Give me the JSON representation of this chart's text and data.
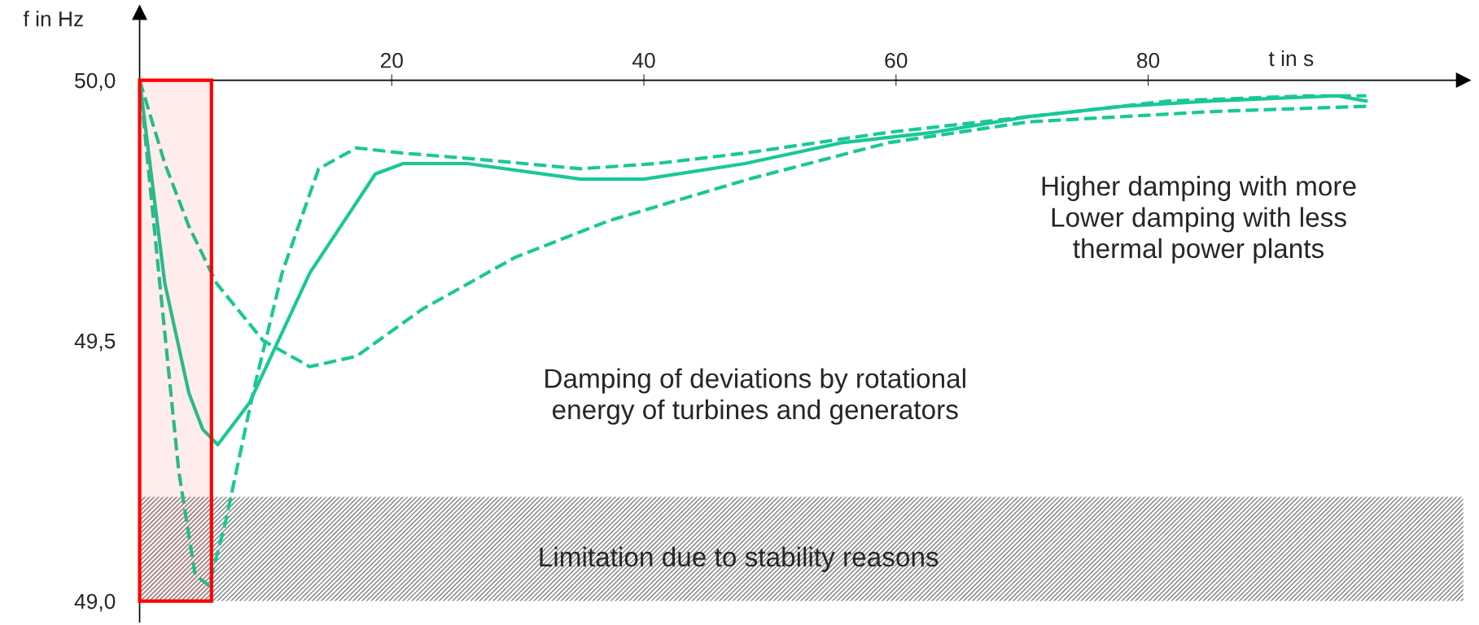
{
  "chart_data": {
    "type": "line",
    "xlabel": "t in s",
    "ylabel": "f in Hz",
    "xlim": [
      0,
      105
    ],
    "ylim": [
      48.96,
      50.13
    ],
    "xticks": [
      20,
      40,
      60,
      80
    ],
    "yticks": [
      {
        "value": 49.0,
        "label": "49,0"
      },
      {
        "value": 49.5,
        "label": "49,5"
      },
      {
        "value": 50.0,
        "label": "50,0"
      }
    ],
    "grid": false,
    "series": [
      {
        "color": "#19c896",
        "line_style": "solid",
        "x": [
          0,
          2,
          3.9,
          5,
          6.2,
          8.7,
          13.5,
          18.7,
          20.9,
          26,
          35,
          40,
          48,
          55.7,
          63,
          70.5,
          78,
          85,
          95,
          97.3
        ],
        "values": [
          50.0,
          49.61,
          49.4,
          49.33,
          49.3,
          49.38,
          49.63,
          49.82,
          49.84,
          49.84,
          49.81,
          49.81,
          49.84,
          49.88,
          49.9,
          49.93,
          49.95,
          49.96,
          49.97,
          49.96
        ]
      },
      {
        "color": "#19c896",
        "line_style": "dashed",
        "x": [
          0,
          1.6,
          3.1,
          4.4,
          5.5,
          6.8,
          9,
          11.3,
          14.2,
          17.2,
          20.9,
          26,
          35,
          41,
          48,
          59.4,
          70.5,
          81.6,
          92.7,
          97.3
        ],
        "values": [
          50.0,
          49.61,
          49.25,
          49.05,
          49.03,
          49.15,
          49.4,
          49.63,
          49.83,
          49.87,
          49.86,
          49.85,
          49.83,
          49.84,
          49.86,
          49.9,
          49.93,
          49.96,
          49.97,
          49.97
        ]
      },
      {
        "color": "#19c896",
        "line_style": "dashed",
        "x": [
          0,
          2,
          3.9,
          6.1,
          9.8,
          13.5,
          17.2,
          22.4,
          29.8,
          37.2,
          48.3,
          59.4,
          70.5,
          85.3,
          97.3
        ],
        "values": [
          50.0,
          49.84,
          49.72,
          49.61,
          49.5,
          49.45,
          49.47,
          49.56,
          49.66,
          49.73,
          49.81,
          49.88,
          49.92,
          49.94,
          49.95
        ]
      }
    ],
    "bands": [
      {
        "axis": "y",
        "from": 49.0,
        "to": 49.2,
        "label": "Limitation due to stability reasons",
        "color": "#808080"
      },
      {
        "axis": "x",
        "from": 0,
        "to": 5.7,
        "label": null,
        "color": "#ff0000"
      }
    ],
    "annotations": [
      "Higher damping with more\nLower damping with less\nthermal power plants",
      "Damping of deviations by rotational\nenergy of turbines and generators"
    ]
  }
}
